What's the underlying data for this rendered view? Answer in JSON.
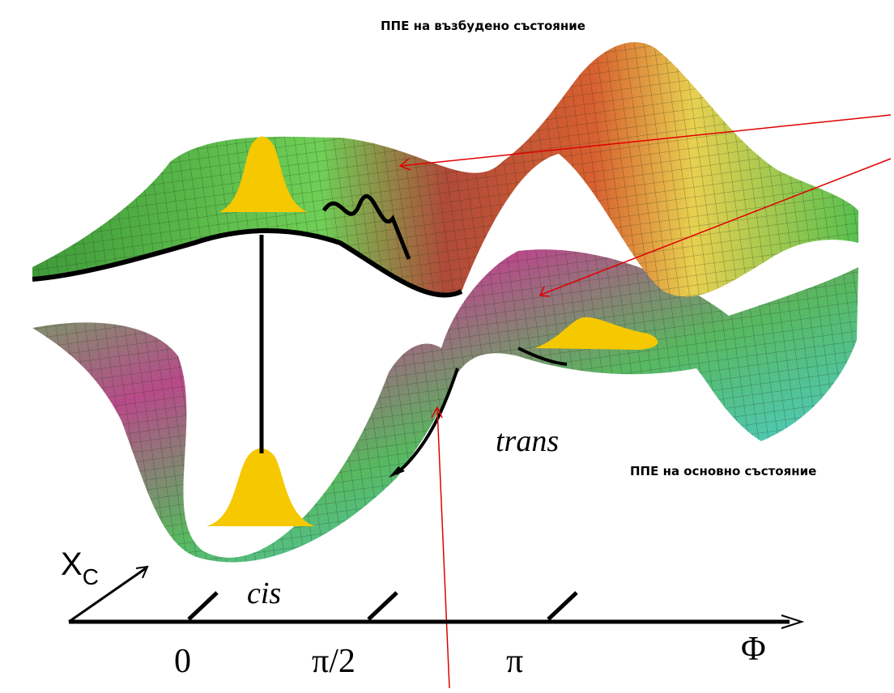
{
  "labels": {
    "excited_state": "ППЕ на възбудено състояние",
    "ground_state": "ППЕ на основно състояние",
    "trans": "trans",
    "cis": "cis"
  },
  "axes": {
    "x_label": "Φ",
    "depth_label": "X",
    "depth_subscript": "C",
    "ticks": [
      "0",
      "π/2",
      "π"
    ]
  }
}
